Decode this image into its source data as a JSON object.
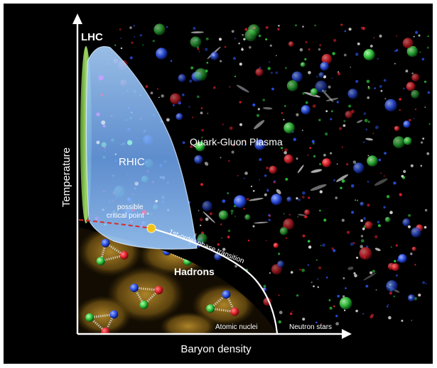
{
  "axes": {
    "x_label": "Baryon density",
    "y_label": "Temperature"
  },
  "regions": {
    "lhc": "LHC",
    "rhic": "RHIC",
    "qgp": "Quark-Gluon Plasma",
    "hadrons": "Hadrons",
    "atomic_nuclei": "Atomic nuclei",
    "neutron_stars": "Neutron stars"
  },
  "annotations": {
    "critical_point_line1": "possible",
    "critical_point_line2": "critical point",
    "transition": "1st-order phase transition"
  },
  "colors": {
    "background": "#000000",
    "axis": "#ffffff",
    "lhc_band": "#8fd14f",
    "rhic_region": "#7fb8ff",
    "transition_line": "#ffffff",
    "crossover_line": "#d42a2a",
    "critical_point": "#f2c21b",
    "hadron_glow": "#7a5a14",
    "quark_red": "#e0202a",
    "quark_green": "#2ec23a",
    "quark_blue": "#2a4ee0"
  },
  "icons": {
    "x_arrow": "arrow-right-icon",
    "y_arrow": "arrow-up-icon"
  }
}
